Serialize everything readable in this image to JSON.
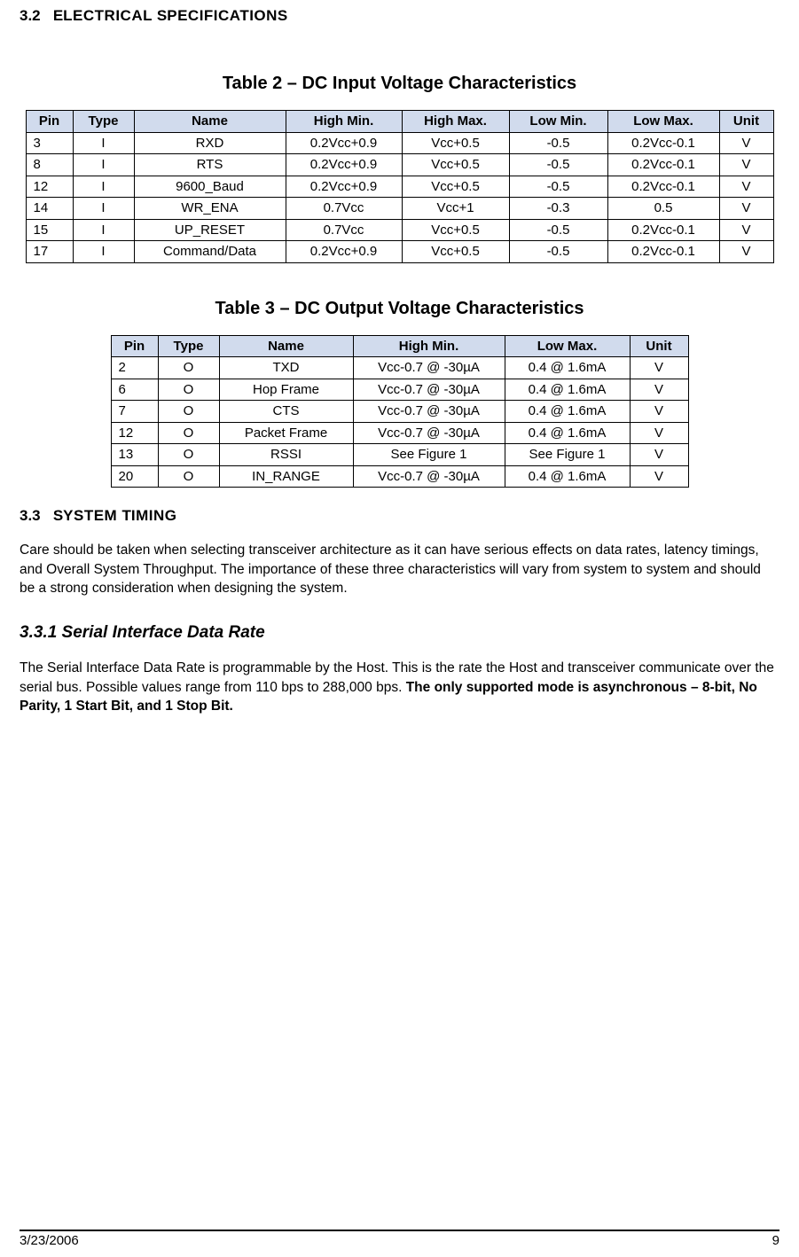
{
  "colors": {
    "header_bg": "#d1dbed",
    "text": "#000000",
    "background": "#ffffff",
    "border": "#000000"
  },
  "typography": {
    "body_font": "Arial",
    "body_size_pt": 12,
    "caption_size_pt": 15,
    "subheading_size_pt": 14
  },
  "section32": {
    "number": "3.2",
    "title_first": "E",
    "title_rest1": "LECTRICAL ",
    "title_first2": "S",
    "title_rest2": "PECIFICATIONS"
  },
  "table2": {
    "caption": "Table 2 – DC Input Voltage Characteristics",
    "columns": [
      "Pin",
      "Type",
      "Name",
      "High Min.",
      "High Max.",
      "Low Min.",
      "Low Max.",
      "Unit"
    ],
    "rows": [
      [
        "3",
        "I",
        "RXD",
        "0.2Vcc+0.9",
        "Vcc+0.5",
        "-0.5",
        "0.2Vcc-0.1",
        "V"
      ],
      [
        "8",
        "I",
        "RTS",
        "0.2Vcc+0.9",
        "Vcc+0.5",
        "-0.5",
        "0.2Vcc-0.1",
        "V"
      ],
      [
        "12",
        "I",
        "9600_Baud",
        "0.2Vcc+0.9",
        "Vcc+0.5",
        "-0.5",
        "0.2Vcc-0.1",
        "V"
      ],
      [
        "14",
        "I",
        "WR_ENA",
        "0.7Vcc",
        "Vcc+1",
        "-0.3",
        "0.5",
        "V"
      ],
      [
        "15",
        "I",
        "UP_RESET",
        "0.7Vcc",
        "Vcc+0.5",
        "-0.5",
        "0.2Vcc-0.1",
        "V"
      ],
      [
        "17",
        "I",
        "Command/Data",
        "0.2Vcc+0.9",
        "Vcc+0.5",
        "-0.5",
        "0.2Vcc-0.1",
        "V"
      ]
    ]
  },
  "table3": {
    "caption": "Table 3 – DC Output Voltage Characteristics",
    "columns": [
      "Pin",
      "Type",
      "Name",
      "High Min.",
      "Low Max.",
      "Unit"
    ],
    "rows": [
      [
        "2",
        "O",
        "TXD",
        "Vcc-0.7 @ -30µA",
        "0.4 @ 1.6mA",
        "V"
      ],
      [
        "6",
        "O",
        "Hop Frame",
        "Vcc-0.7 @ -30µA",
        "0.4 @ 1.6mA",
        "V"
      ],
      [
        "7",
        "O",
        "CTS",
        "Vcc-0.7 @ -30µA",
        "0.4 @ 1.6mA",
        "V"
      ],
      [
        "12",
        "O",
        "Packet Frame",
        "Vcc-0.7 @ -30µA",
        "0.4 @ 1.6mA",
        "V"
      ],
      [
        "13",
        "O",
        "RSSI",
        "See Figure 1",
        "See Figure 1",
        "V"
      ],
      [
        "20",
        "O",
        "IN_RANGE",
        "Vcc-0.7 @ -30µA",
        "0.4 @ 1.6mA",
        "V"
      ]
    ]
  },
  "section33": {
    "number": "3.3",
    "title_first": "S",
    "title_rest1": "YSTEM ",
    "title_first2": "T",
    "title_rest2": "IMING",
    "para": "Care should be taken when selecting transceiver architecture as it can have serious effects on data rates, latency timings, and Overall System Throughput.  The importance of these three characteristics will vary from system to system and should be a strong consideration when designing the system."
  },
  "section331": {
    "heading": "3.3.1  Serial Interface Data Rate",
    "para_prefix": "The Serial Interface Data Rate is programmable by the Host.  This is the rate the Host and transceiver communicate over the serial bus. Possible values range from 110 bps to 288,000 bps.  ",
    "para_bold": "The only supported mode is asynchronous – 8-bit, No Parity, 1 Start Bit, and 1 Stop Bit."
  },
  "footer": {
    "date": "3/23/2006",
    "page": "9"
  }
}
